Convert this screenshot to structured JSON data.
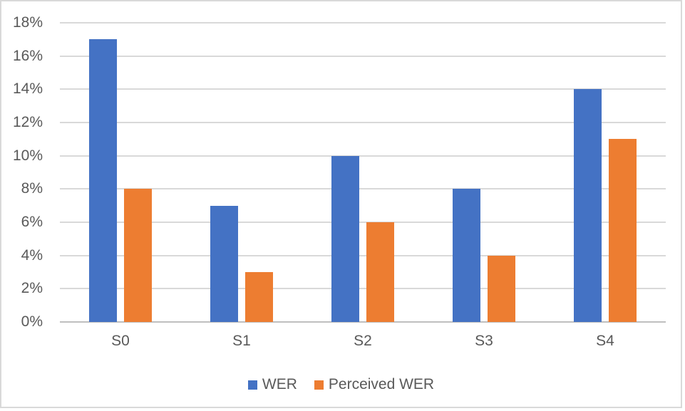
{
  "chart_data": {
    "type": "bar",
    "title": "",
    "xlabel": "",
    "ylabel": "",
    "categories": [
      "S0",
      "S1",
      "S2",
      "S3",
      "S4"
    ],
    "series": [
      {
        "name": "WER",
        "color": "#4472C4",
        "values": [
          17,
          7,
          10,
          8,
          14
        ]
      },
      {
        "name": "Perceived WER",
        "color": "#ED7D31",
        "values": [
          8,
          3,
          6,
          4,
          11
        ]
      }
    ],
    "ylim": [
      0,
      18
    ],
    "ytick_step": 2,
    "yticks": [
      {
        "value": 0,
        "label": "0%"
      },
      {
        "value": 2,
        "label": "2%"
      },
      {
        "value": 4,
        "label": "4%"
      },
      {
        "value": 6,
        "label": "6%"
      },
      {
        "value": 8,
        "label": "8%"
      },
      {
        "value": 10,
        "label": "10%"
      },
      {
        "value": 12,
        "label": "12%"
      },
      {
        "value": 14,
        "label": "14%"
      },
      {
        "value": 16,
        "label": "16%"
      },
      {
        "value": 18,
        "label": "18%"
      }
    ],
    "grid": true,
    "legend_position": "bottom"
  },
  "colors": {
    "background": "#FFFFFF",
    "frame_border": "#D9D9D9",
    "gridline": "#D9D9D9",
    "axis_line": "#BFBFBF",
    "axis_text": "#595959",
    "series_wer": "#4472C4",
    "series_perceived_wer": "#ED7D31"
  }
}
